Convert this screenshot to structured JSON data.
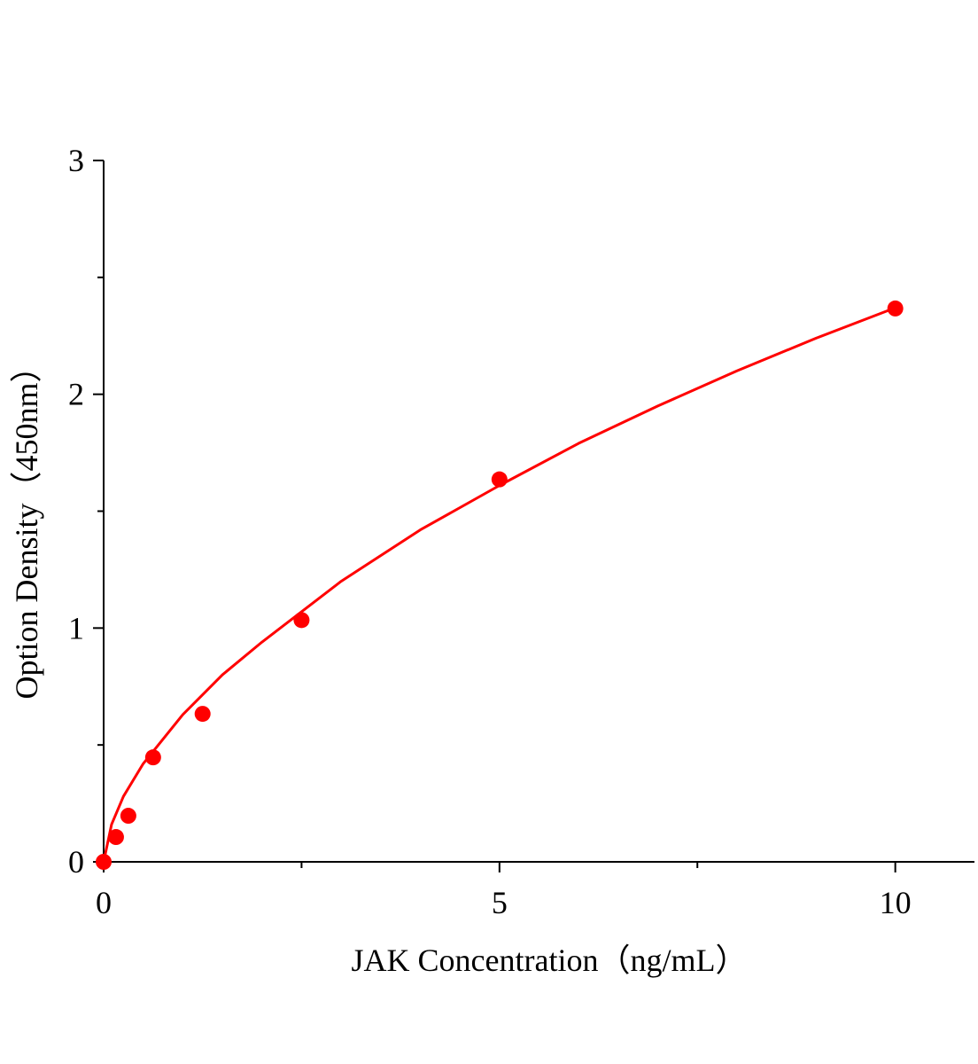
{
  "chart_data": {
    "type": "scatter",
    "x_label": "JAK Concentration（ng/mL）",
    "y_label": "Option Density（450nm）",
    "xlim": [
      0,
      11
    ],
    "ylim": [
      0,
      3
    ],
    "xticks": [
      0,
      5,
      10
    ],
    "yticks": [
      0,
      1,
      2,
      3
    ],
    "x_minor_ticks": [
      2.5,
      7.5
    ],
    "y_minor_ticks": [
      0.5,
      1.5,
      2.5
    ],
    "grid": false,
    "series": [
      {
        "type": "scatter",
        "color": "#ff0000",
        "x": [
          0,
          0.156,
          0.312,
          0.625,
          1.25,
          2.5,
          5,
          10
        ],
        "values": [
          0,
          0.106,
          0.197,
          0.447,
          0.633,
          1.034,
          1.636,
          2.367
        ]
      },
      {
        "type": "line",
        "color": "#ff0000",
        "x": [
          0,
          0.1,
          0.25,
          0.5,
          1,
          1.5,
          2,
          3,
          4,
          5,
          6,
          7,
          8,
          9,
          10
        ],
        "values": [
          0,
          0.16,
          0.28,
          0.42,
          0.63,
          0.8,
          0.94,
          1.2,
          1.42,
          1.61,
          1.79,
          1.95,
          2.1,
          2.24,
          2.37
        ]
      }
    ]
  }
}
